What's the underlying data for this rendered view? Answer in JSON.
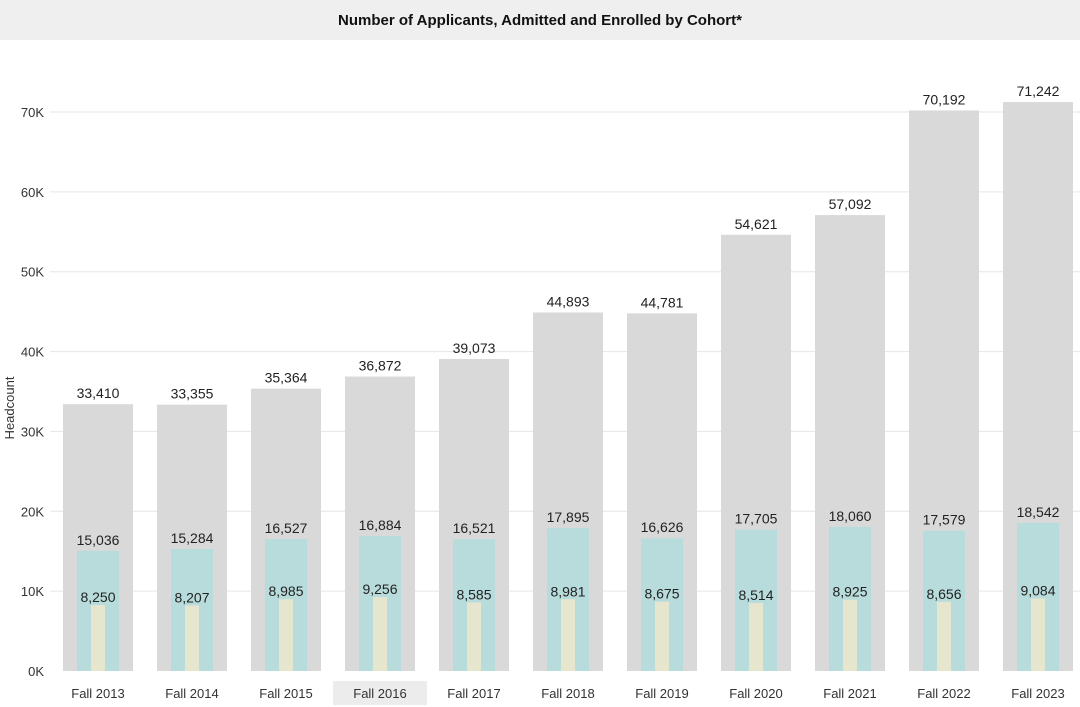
{
  "chart_data": {
    "type": "bar",
    "title": "Number of Applicants, Admitted and Enrolled by Cohort*",
    "ylabel": "Headcount",
    "xlabel": "",
    "ylim": [
      0,
      78000
    ],
    "yticks": [
      0,
      10000,
      20000,
      30000,
      40000,
      50000,
      60000,
      70000
    ],
    "ytick_labels": [
      "0K",
      "10K",
      "20K",
      "30K",
      "40K",
      "50K",
      "60K",
      "70K"
    ],
    "grid": true,
    "categories": [
      "Fall 2013",
      "Fall 2014",
      "Fall 2015",
      "Fall 2016",
      "Fall 2017",
      "Fall 2018",
      "Fall 2019",
      "Fall 2020",
      "Fall 2021",
      "Fall 2022",
      "Fall 2023"
    ],
    "series": [
      {
        "values": [
          33410,
          33355,
          35364,
          36872,
          39073,
          44893,
          44781,
          54621,
          57092,
          70192,
          71242
        ],
        "labels": [
          "33,410",
          "33,355",
          "35,364",
          "36,872",
          "39,073",
          "44,893",
          "44,781",
          "54,621",
          "57,092",
          "70,192",
          "71,242"
        ],
        "color": "#d9d9d9"
      },
      {
        "values": [
          15036,
          15284,
          16527,
          16884,
          16521,
          17895,
          16626,
          17705,
          18060,
          17579,
          18542
        ],
        "labels": [
          "15,036",
          "15,284",
          "16,527",
          "16,884",
          "16,521",
          "17,895",
          "16,626",
          "17,705",
          "18,060",
          "17,579",
          "18,542"
        ],
        "color": "#b8dcdc"
      },
      {
        "values": [
          8250,
          8207,
          8985,
          9256,
          8585,
          8981,
          8675,
          8514,
          8925,
          8656,
          9084
        ],
        "labels": [
          "8,250",
          "8,207",
          "8,985",
          "9,256",
          "8,585",
          "8,981",
          "8,675",
          "8,514",
          "8,925",
          "8,656",
          "9,084"
        ],
        "color": "#e6e6cf"
      }
    ],
    "highlighted_category": "Fall 2016",
    "highlight_color": "#ececec",
    "gridline_color": "#e6e6e6"
  }
}
